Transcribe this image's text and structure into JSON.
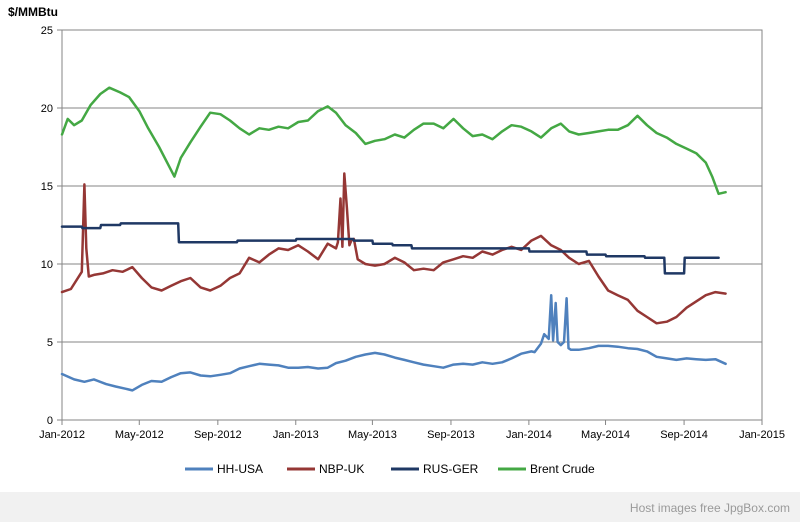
{
  "chart_data": {
    "type": "line",
    "title": "",
    "ylabel": "$/MMBtu",
    "xlabel": "",
    "ylim": [
      0,
      25
    ],
    "yticks": [
      0,
      5,
      10,
      15,
      20,
      25
    ],
    "xlim": [
      "2012-01-01",
      "2015-01-01"
    ],
    "xticks": [
      {
        "date": "2012-01-01",
        "label": "Jan-2012"
      },
      {
        "date": "2012-05-01",
        "label": "May-2012"
      },
      {
        "date": "2012-09-01",
        "label": "Sep-2012"
      },
      {
        "date": "2013-01-01",
        "label": "Jan-2013"
      },
      {
        "date": "2013-05-01",
        "label": "May-2013"
      },
      {
        "date": "2013-09-01",
        "label": "Sep-2013"
      },
      {
        "date": "2014-01-01",
        "label": "Jan-2014"
      },
      {
        "date": "2014-05-01",
        "label": "May-2014"
      },
      {
        "date": "2014-09-01",
        "label": "Sep-2014"
      },
      {
        "date": "2015-01-01",
        "label": "Jan-2015"
      }
    ],
    "grid": "horizontal",
    "legend_position": "bottom",
    "series": [
      {
        "name": "HH-USA",
        "color": "#4f81bd",
        "x": [
          "2012-01-01",
          "2012-01-20",
          "2012-02-05",
          "2012-02-20",
          "2012-03-10",
          "2012-03-25",
          "2012-04-10",
          "2012-04-20",
          "2012-05-05",
          "2012-05-20",
          "2012-06-05",
          "2012-06-20",
          "2012-07-05",
          "2012-07-20",
          "2012-08-05",
          "2012-08-20",
          "2012-09-05",
          "2012-09-20",
          "2012-10-05",
          "2012-10-20",
          "2012-11-05",
          "2012-11-20",
          "2012-12-05",
          "2012-12-20",
          "2013-01-05",
          "2013-01-20",
          "2013-02-05",
          "2013-02-20",
          "2013-03-05",
          "2013-03-20",
          "2013-04-05",
          "2013-04-20",
          "2013-05-05",
          "2013-05-20",
          "2013-06-05",
          "2013-06-20",
          "2013-07-05",
          "2013-07-20",
          "2013-08-05",
          "2013-08-20",
          "2013-09-05",
          "2013-09-20",
          "2013-10-05",
          "2013-10-20",
          "2013-11-05",
          "2013-11-20",
          "2013-12-05",
          "2013-12-20",
          "2014-01-05",
          "2014-01-10",
          "2014-01-20",
          "2014-01-25",
          "2014-02-01",
          "2014-02-05",
          "2014-02-08",
          "2014-02-12",
          "2014-02-15",
          "2014-02-20",
          "2014-02-25",
          "2014-03-01",
          "2014-03-04",
          "2014-03-08",
          "2014-03-12",
          "2014-03-20",
          "2014-04-05",
          "2014-04-20",
          "2014-05-05",
          "2014-05-20",
          "2014-06-05",
          "2014-06-20",
          "2014-07-05",
          "2014-07-20",
          "2014-08-05",
          "2014-08-20",
          "2014-09-05",
          "2014-09-20",
          "2014-10-05",
          "2014-10-20",
          "2014-11-05"
        ],
        "values": [
          2.95,
          2.6,
          2.45,
          2.6,
          2.3,
          2.15,
          2.0,
          1.9,
          2.25,
          2.5,
          2.45,
          2.75,
          3.0,
          3.05,
          2.85,
          2.8,
          2.9,
          3.0,
          3.3,
          3.45,
          3.6,
          3.55,
          3.5,
          3.35,
          3.35,
          3.4,
          3.3,
          3.35,
          3.65,
          3.8,
          4.05,
          4.2,
          4.3,
          4.2,
          4.0,
          3.85,
          3.7,
          3.55,
          3.45,
          3.35,
          3.55,
          3.6,
          3.55,
          3.7,
          3.6,
          3.7,
          3.95,
          4.25,
          4.4,
          4.35,
          4.9,
          5.5,
          5.2,
          8.0,
          5.1,
          7.5,
          5.0,
          4.8,
          5.0,
          7.8,
          4.6,
          4.5,
          4.5,
          4.5,
          4.6,
          4.75,
          4.75,
          4.7,
          4.6,
          4.55,
          4.4,
          4.05,
          3.95,
          3.85,
          3.95,
          3.9,
          3.85,
          3.9,
          3.6
        ]
      },
      {
        "name": "NBP-UK",
        "color": "#953735",
        "x": [
          "2012-01-01",
          "2012-01-15",
          "2012-02-01",
          "2012-02-05",
          "2012-02-08",
          "2012-02-12",
          "2012-02-20",
          "2012-03-05",
          "2012-03-20",
          "2012-04-05",
          "2012-04-20",
          "2012-05-05",
          "2012-05-20",
          "2012-06-05",
          "2012-06-20",
          "2012-07-05",
          "2012-07-20",
          "2012-08-05",
          "2012-08-20",
          "2012-09-05",
          "2012-09-20",
          "2012-10-05",
          "2012-10-20",
          "2012-11-05",
          "2012-11-20",
          "2012-12-05",
          "2012-12-20",
          "2013-01-05",
          "2013-01-20",
          "2013-02-05",
          "2013-02-20",
          "2013-03-05",
          "2013-03-08",
          "2013-03-12",
          "2013-03-15",
          "2013-03-18",
          "2013-03-22",
          "2013-03-26",
          "2013-03-29",
          "2013-04-02",
          "2013-04-08",
          "2013-04-20",
          "2013-05-05",
          "2013-05-20",
          "2013-06-05",
          "2013-06-20",
          "2013-07-05",
          "2013-07-20",
          "2013-08-05",
          "2013-08-20",
          "2013-09-05",
          "2013-09-20",
          "2013-10-05",
          "2013-10-20",
          "2013-11-05",
          "2013-11-20",
          "2013-12-05",
          "2013-12-20",
          "2014-01-05",
          "2014-01-20",
          "2014-02-05",
          "2014-02-20",
          "2014-03-05",
          "2014-03-20",
          "2014-04-05",
          "2014-04-20",
          "2014-05-05",
          "2014-05-20",
          "2014-06-05",
          "2014-06-20",
          "2014-07-05",
          "2014-07-20",
          "2014-08-05",
          "2014-08-20",
          "2014-09-05",
          "2014-09-20",
          "2014-10-05",
          "2014-10-20",
          "2014-11-05"
        ],
        "values": [
          8.2,
          8.4,
          9.5,
          15.1,
          11.0,
          9.2,
          9.3,
          9.4,
          9.6,
          9.5,
          9.8,
          9.1,
          8.5,
          8.3,
          8.6,
          8.9,
          9.1,
          8.5,
          8.3,
          8.6,
          9.1,
          9.4,
          10.4,
          10.1,
          10.6,
          11.0,
          10.9,
          11.2,
          10.8,
          10.3,
          11.3,
          11.0,
          11.4,
          14.2,
          11.1,
          15.8,
          13.6,
          11.2,
          11.5,
          11.6,
          10.3,
          10.0,
          9.9,
          10.0,
          10.4,
          10.1,
          9.6,
          9.7,
          9.6,
          10.1,
          10.3,
          10.5,
          10.4,
          10.8,
          10.6,
          10.9,
          11.1,
          10.9,
          11.5,
          11.8,
          11.2,
          10.9,
          10.4,
          10.0,
          10.2,
          9.2,
          8.3,
          8.0,
          7.7,
          7.0,
          6.6,
          6.2,
          6.3,
          6.6,
          7.2,
          7.6,
          8.0,
          8.2,
          8.1
        ]
      },
      {
        "name": "RUS-GER",
        "color": "#1f3864",
        "x": [
          "2012-01-01",
          "2012-02-01",
          "2012-02-02",
          "2012-03-01",
          "2012-03-02",
          "2012-04-01",
          "2012-04-02",
          "2012-07-01",
          "2012-07-02",
          "2012-10-01",
          "2012-10-02",
          "2013-01-01",
          "2013-01-02",
          "2013-04-01",
          "2013-04-02",
          "2013-05-01",
          "2013-05-02",
          "2013-06-01",
          "2013-06-02",
          "2013-07-01",
          "2013-07-02",
          "2013-10-01",
          "2013-10-02",
          "2014-01-01",
          "2014-01-02",
          "2014-04-01",
          "2014-04-02",
          "2014-05-01",
          "2014-05-02",
          "2014-07-01",
          "2014-07-02",
          "2014-08-01",
          "2014-08-02",
          "2014-09-01",
          "2014-09-02",
          "2014-10-25"
        ],
        "values": [
          12.4,
          12.4,
          12.3,
          12.3,
          12.5,
          12.5,
          12.6,
          12.6,
          11.4,
          11.4,
          11.5,
          11.5,
          11.6,
          11.6,
          11.5,
          11.5,
          11.3,
          11.3,
          11.2,
          11.2,
          11.0,
          11.0,
          11.0,
          11.0,
          10.8,
          10.8,
          10.6,
          10.6,
          10.5,
          10.5,
          10.4,
          10.4,
          9.4,
          9.4,
          10.4,
          10.4
        ]
      },
      {
        "name": "Brent Crude",
        "color": "#44a844",
        "x": [
          "2012-01-01",
          "2012-01-10",
          "2012-01-20",
          "2012-02-01",
          "2012-02-15",
          "2012-03-01",
          "2012-03-15",
          "2012-04-01",
          "2012-04-15",
          "2012-05-01",
          "2012-05-15",
          "2012-06-01",
          "2012-06-15",
          "2012-06-25",
          "2012-07-05",
          "2012-07-20",
          "2012-08-05",
          "2012-08-20",
          "2012-09-05",
          "2012-09-20",
          "2012-10-05",
          "2012-10-20",
          "2012-11-05",
          "2012-11-20",
          "2012-12-05",
          "2012-12-20",
          "2013-01-05",
          "2013-01-20",
          "2013-02-05",
          "2013-02-20",
          "2013-03-05",
          "2013-03-20",
          "2013-04-05",
          "2013-04-20",
          "2013-05-05",
          "2013-05-20",
          "2013-06-05",
          "2013-06-20",
          "2013-07-05",
          "2013-07-20",
          "2013-08-05",
          "2013-08-20",
          "2013-09-05",
          "2013-09-20",
          "2013-10-05",
          "2013-10-20",
          "2013-11-05",
          "2013-11-20",
          "2013-12-05",
          "2013-12-20",
          "2014-01-05",
          "2014-01-20",
          "2014-02-05",
          "2014-02-20",
          "2014-03-05",
          "2014-03-20",
          "2014-04-05",
          "2014-04-20",
          "2014-05-05",
          "2014-05-20",
          "2014-06-05",
          "2014-06-20",
          "2014-07-05",
          "2014-07-20",
          "2014-08-05",
          "2014-08-20",
          "2014-09-05",
          "2014-09-20",
          "2014-10-05",
          "2014-10-15",
          "2014-10-25",
          "2014-11-05"
        ],
        "values": [
          18.3,
          19.3,
          18.9,
          19.2,
          20.2,
          20.9,
          21.3,
          21.0,
          20.7,
          19.8,
          18.7,
          17.5,
          16.4,
          15.6,
          16.8,
          17.8,
          18.8,
          19.7,
          19.6,
          19.2,
          18.7,
          18.3,
          18.7,
          18.6,
          18.8,
          18.7,
          19.1,
          19.2,
          19.8,
          20.1,
          19.7,
          18.9,
          18.4,
          17.7,
          17.9,
          18.0,
          18.3,
          18.1,
          18.6,
          19.0,
          19.0,
          18.7,
          19.3,
          18.7,
          18.2,
          18.3,
          18.0,
          18.5,
          18.9,
          18.8,
          18.5,
          18.1,
          18.7,
          19.0,
          18.5,
          18.3,
          18.4,
          18.5,
          18.6,
          18.6,
          18.9,
          19.5,
          18.9,
          18.4,
          18.1,
          17.7,
          17.4,
          17.1,
          16.5,
          15.6,
          14.5,
          14.6
        ]
      }
    ]
  },
  "footer": {
    "text": "Host images free JpgBox.com"
  }
}
